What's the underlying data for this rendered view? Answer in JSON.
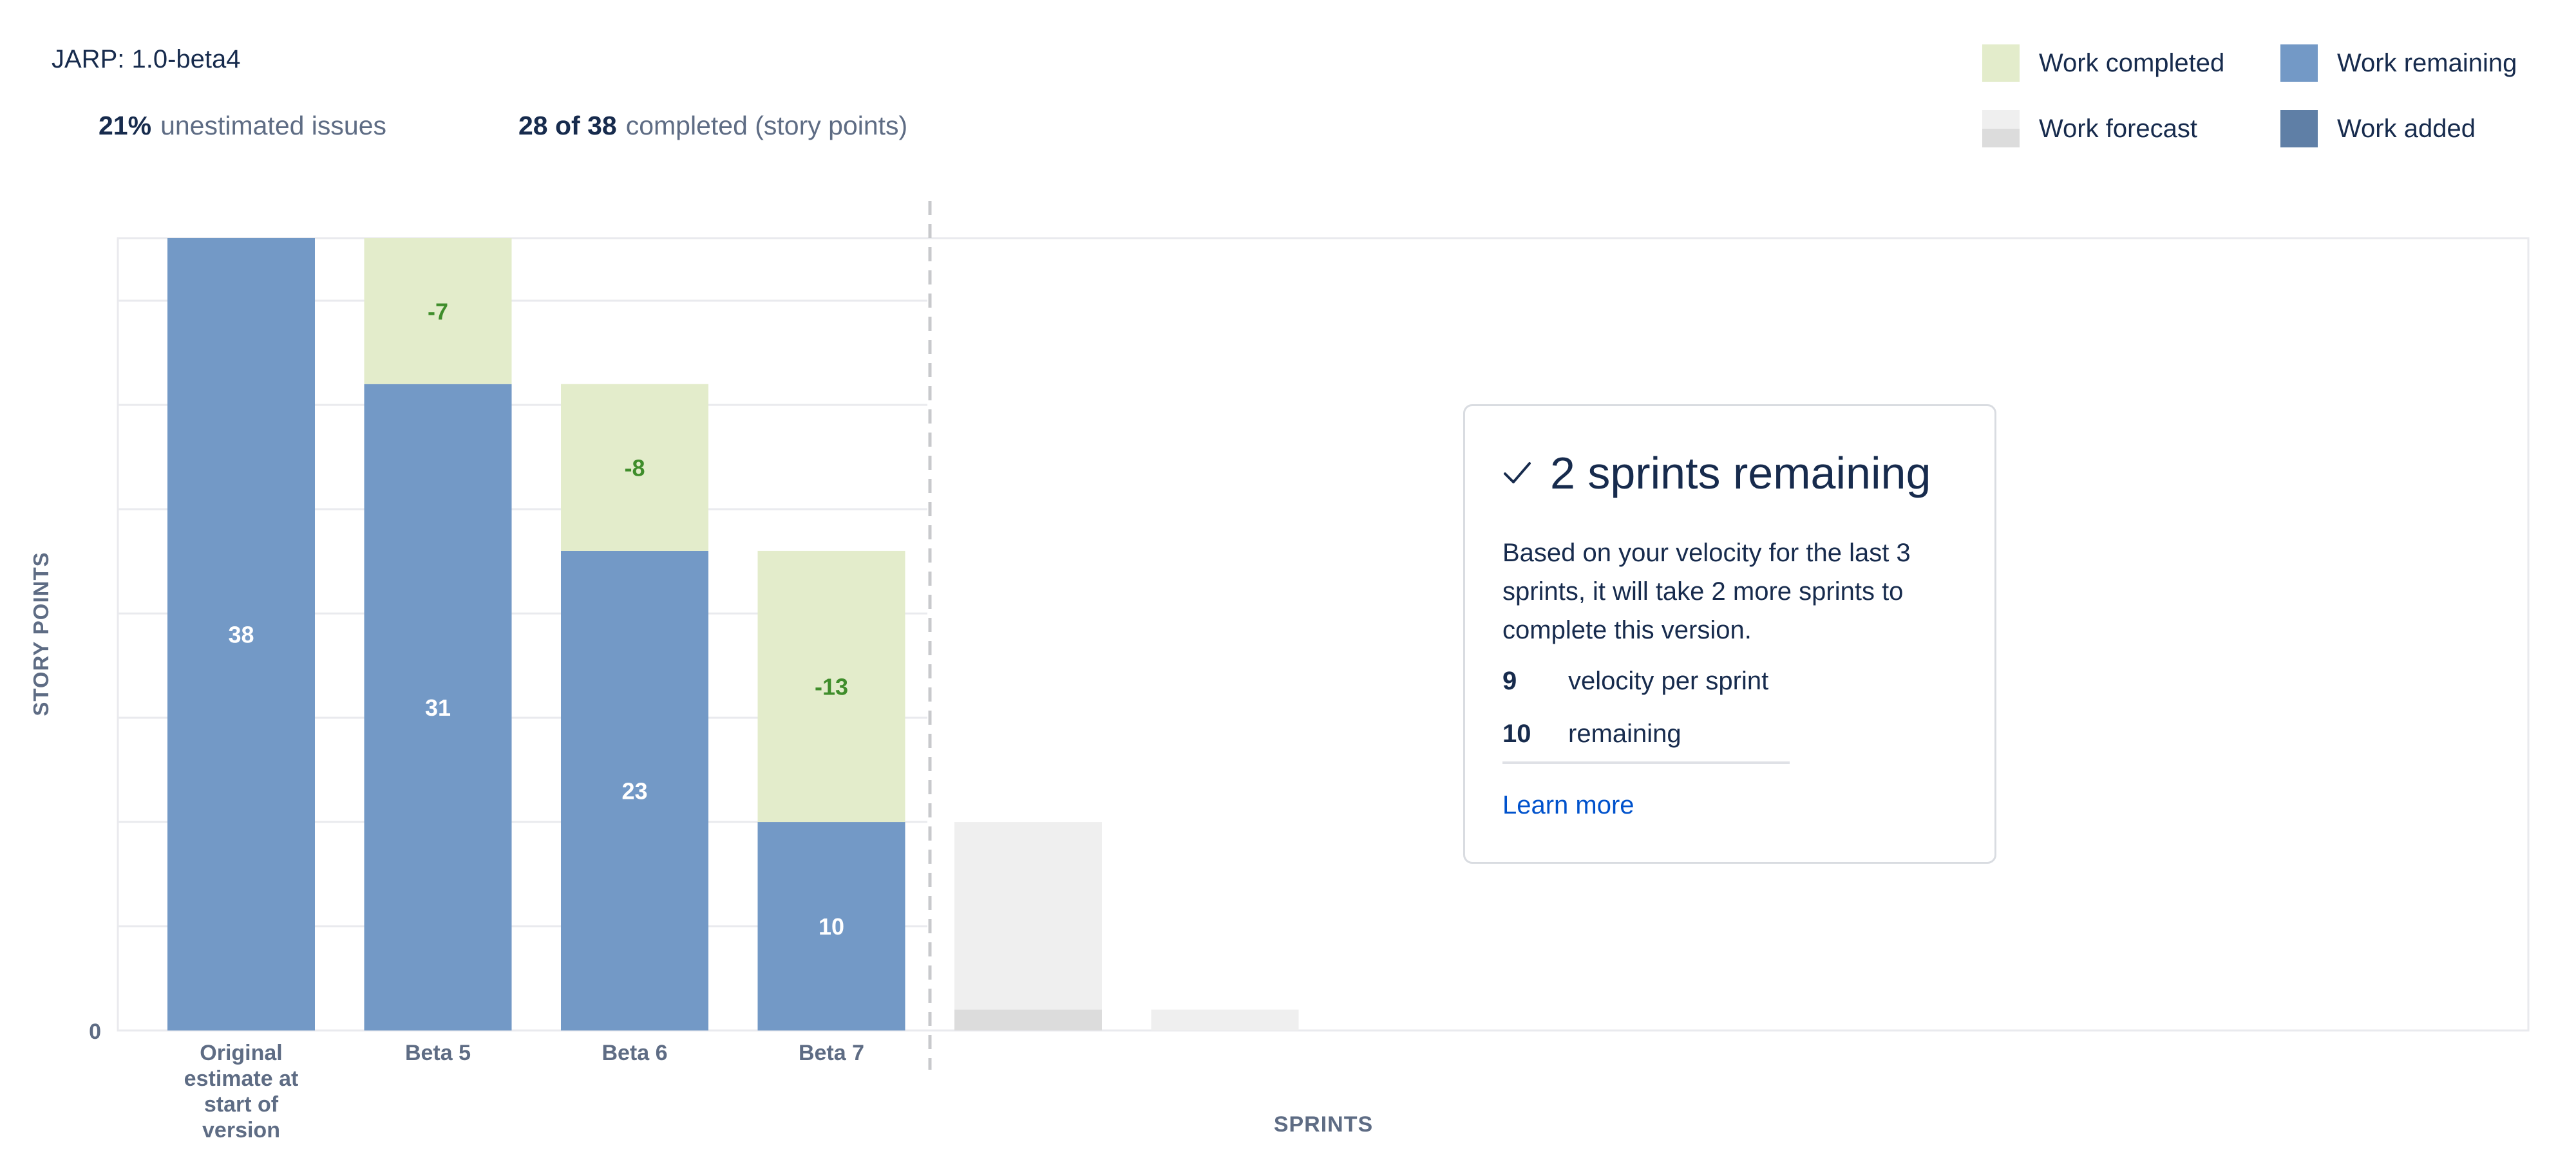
{
  "header": {
    "version_label": "JARP: 1.0-beta4",
    "unestimated_value": "21%",
    "unestimated_text": "unestimated issues",
    "completed_value": "28 of 38",
    "completed_text": "completed (story points)"
  },
  "legend": {
    "completed": "Work completed",
    "remaining": "Work remaining",
    "forecast": "Work forecast",
    "added": "Work added"
  },
  "colors": {
    "completed": "#e3eccb",
    "remaining": "#7399c6",
    "added": "#5f7fa6",
    "forecast": "#efefef",
    "forecast_dark": "#dcdcdc",
    "completed_label": "#3f8d2b",
    "gridline": "#e9eaee"
  },
  "chart_data": {
    "type": "bar",
    "title": "",
    "xlabel": "SPRINTS",
    "ylabel": "STORY POINTS",
    "ylim": [
      0,
      38
    ],
    "y_ticks": [
      "0"
    ],
    "categories": [
      "Original estimate at start of version",
      "Beta 5",
      "Beta 6",
      "Beta 7"
    ],
    "category_lines": [
      [
        "Original",
        "estimate at",
        "start of",
        "version"
      ],
      [
        "Beta 5"
      ],
      [
        "Beta 6"
      ],
      [
        "Beta 7"
      ]
    ],
    "series": [
      {
        "name": "Work remaining",
        "values": [
          38,
          31,
          23,
          10
        ]
      },
      {
        "name": "Work completed",
        "values": [
          0,
          7,
          8,
          13
        ]
      }
    ],
    "remaining_labels": [
      "38",
      "31",
      "23",
      "10"
    ],
    "completed_labels": [
      "",
      "-7",
      "-8",
      "-13"
    ],
    "forecast": [
      {
        "remaining": 10,
        "completed": 1
      },
      {
        "remaining": 1,
        "completed": 0
      }
    ],
    "grid": true,
    "legend_position": "top-right"
  },
  "forecast_card": {
    "title": "2 sprints remaining",
    "description": "Based on your velocity for the last 3 sprints, it will take 2 more sprints to complete this version.",
    "velocity_value": "9",
    "velocity_label": "velocity per sprint",
    "remaining_value": "10",
    "remaining_label": "remaining",
    "link": "Learn more",
    "check_icon": "check-icon"
  }
}
